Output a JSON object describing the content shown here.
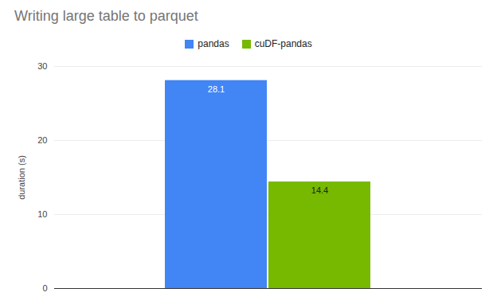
{
  "chart_data": {
    "type": "bar",
    "title": "Writing large table to parquet",
    "categories": [
      null
    ],
    "series": [
      {
        "name": "pandas",
        "color": "#4285f4",
        "values": [
          28.1
        ]
      },
      {
        "name": "cuDF-pandas",
        "color": "#76b900",
        "values": [
          14.4
        ]
      }
    ],
    "y_label": "duration (s)",
    "ylim": [
      0,
      30
    ],
    "yticks": [
      0,
      10,
      20,
      30
    ],
    "grid": true,
    "legend": "top",
    "data_labels": true
  }
}
